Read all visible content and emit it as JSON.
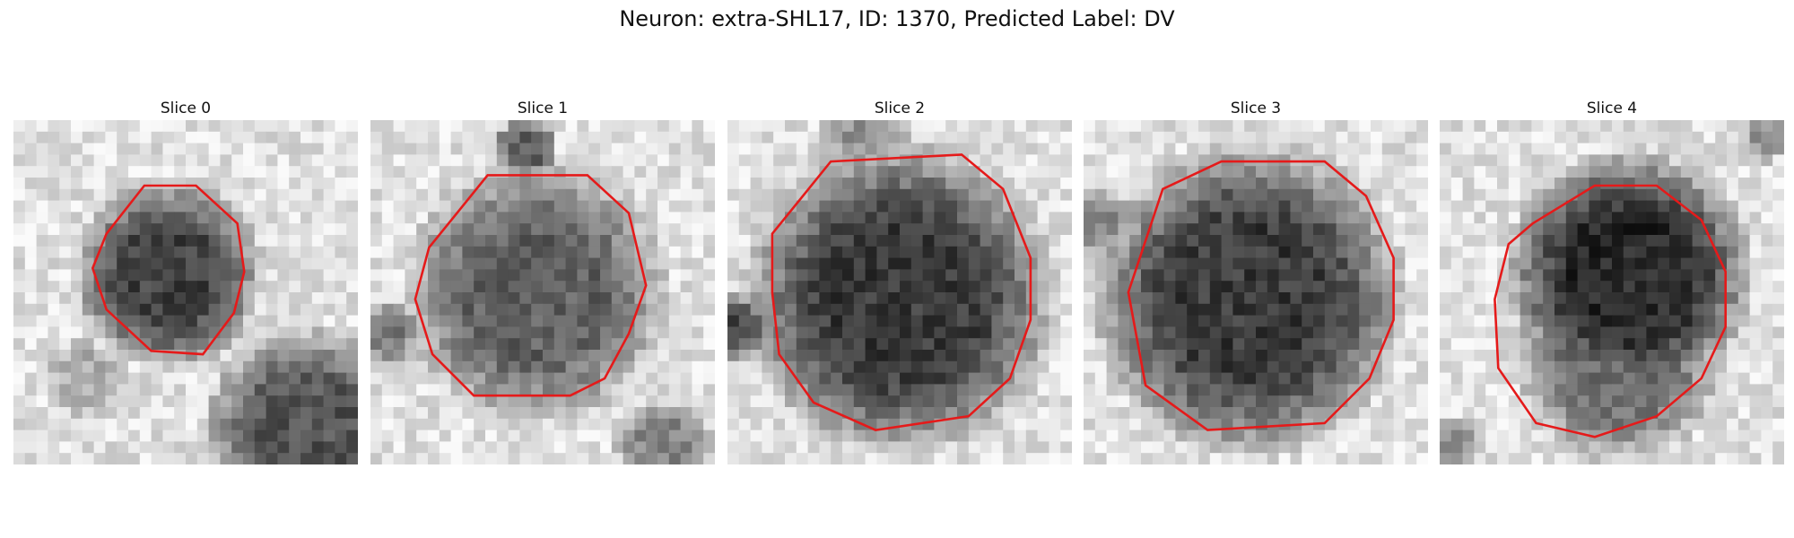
{
  "figure": {
    "title": "Neuron: extra-SHL17, ID: 1370, Predicted Label: DV"
  },
  "panels": [
    {
      "label": "Slice 0"
    },
    {
      "label": "Slice 1"
    },
    {
      "label": "Slice 2"
    },
    {
      "label": "Slice 3"
    },
    {
      "label": "Slice 4"
    }
  ],
  "colors": {
    "contour": "#e51a1a"
  }
}
